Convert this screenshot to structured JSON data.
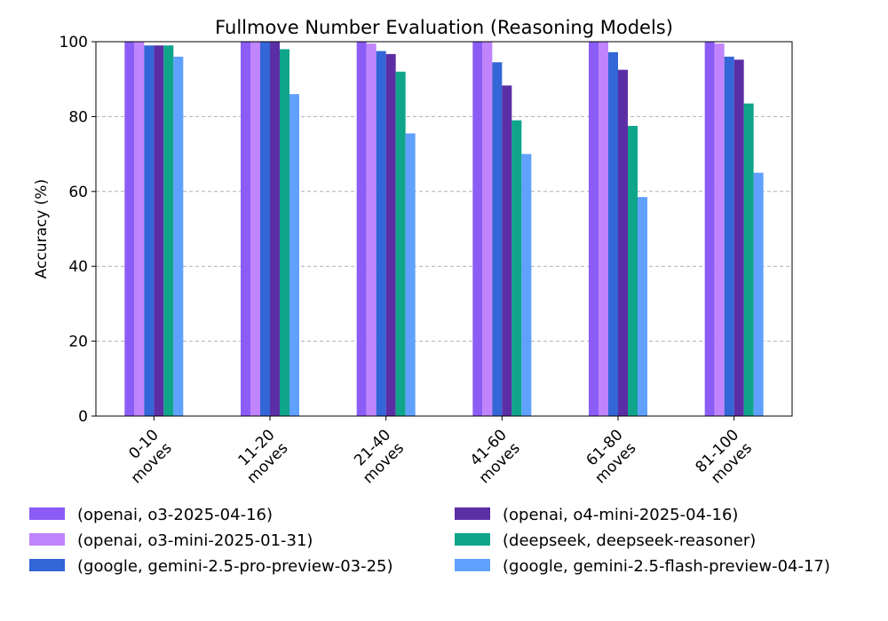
{
  "chart_data": {
    "type": "bar",
    "title": "Fullmove Number Evaluation (Reasoning Models)",
    "xlabel": "",
    "ylabel": "Accuracy (%)",
    "ylim": [
      0,
      100
    ],
    "yticks": [
      "0",
      "20",
      "40",
      "60",
      "80",
      "100"
    ],
    "grid": "y",
    "legend_position": "bottom",
    "categories": [
      [
        "0-10",
        "moves"
      ],
      [
        "11-20",
        "moves"
      ],
      [
        "21-40",
        "moves"
      ],
      [
        "41-60",
        "moves"
      ],
      [
        "61-80",
        "moves"
      ],
      [
        "81-100",
        "moves"
      ]
    ],
    "series": [
      {
        "name": "(openai, o3-2025-04-16)",
        "color": "#8b5cf6",
        "values": [
          100,
          100,
          100,
          100,
          100,
          100
        ]
      },
      {
        "name": "(openai, o3-mini-2025-01-31)",
        "color": "#c084fc",
        "values": [
          100,
          100,
          99.5,
          100,
          100,
          99.5
        ]
      },
      {
        "name": "(google, gemini-2.5-pro-preview-03-25)",
        "color": "#3366d6",
        "values": [
          99,
          100,
          97.5,
          94.5,
          97.2,
          96
        ]
      },
      {
        "name": "(openai, o4-mini-2025-04-16)",
        "color": "#5b2ea6",
        "values": [
          99,
          100,
          96.7,
          88.3,
          92.5,
          95.2
        ]
      },
      {
        "name": "(deepseek, deepseek-reasoner)",
        "color": "#0ea58a",
        "values": [
          99,
          98,
          92,
          79,
          77.5,
          83.5
        ]
      },
      {
        "name": "(google, gemini-2.5-flash-preview-04-17)",
        "color": "#60a0ff",
        "values": [
          96,
          86,
          75.5,
          70,
          58.5,
          65
        ]
      }
    ]
  }
}
